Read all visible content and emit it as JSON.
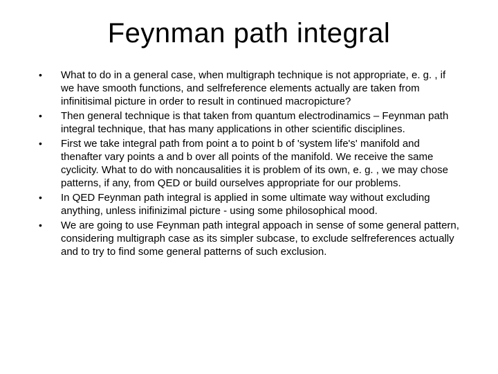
{
  "slide": {
    "title": "Feynman path integral",
    "title_fontsize": 40,
    "body_fontsize": 15,
    "line_height": 19,
    "background_color": "#ffffff",
    "text_color": "#000000",
    "font_family": "Arial",
    "bullet_glyph": "•",
    "bullets": [
      "What to do in a general case, when multigraph technique is not appropriate, e. g. , if we have smooth functions, and selfreference elements actually are taken from infinitisimal picture in order to result in continued macropicture?",
      "Then general technique is that taken from quantum electrodinamics – Feynman path integral technique, that has many applications in other scientific disciplines.",
      "First we take integral path from point a to point b of 'system life's' manifold and thenafter vary points a and b over all points of the manifold. We receive the same cyclicity. What to do with noncausalities it is problem of its own, e. g. , we may chose patterns, if any, from QED or build ourselves appropriate for our problems.",
      "In QED Feynman path integral is applied in some ultimate way without excluding anything, unless inifinizimal picture - using some philosophical mood.",
      "We are going to use Feynman path integral appoach in sense of some general pattern, considering multigraph case as its simpler subcase, to exclude selfreferences actually and to try to find some general patterns of such exclusion."
    ]
  }
}
